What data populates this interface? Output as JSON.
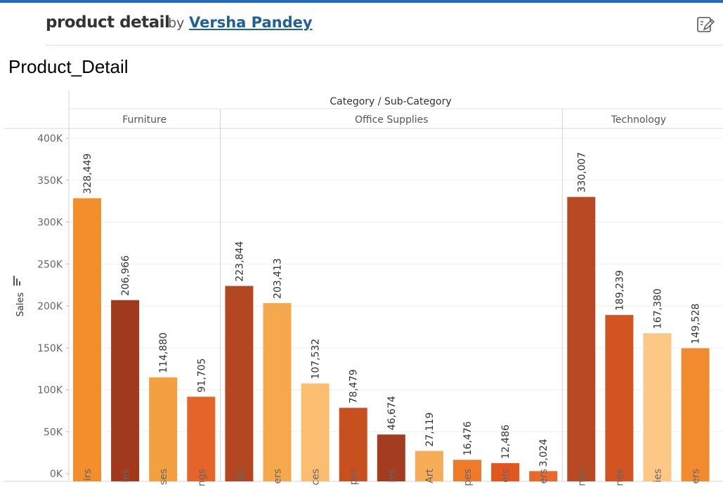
{
  "header": {
    "title": "product detail",
    "by": "by",
    "author": "Versha Pandey",
    "edit_icon": "edit-pencil-icon"
  },
  "sheet": {
    "title": "Product_Detail"
  },
  "chart_data": {
    "type": "bar",
    "column_header": "Category / Sub-Category",
    "ylabel": "Sales",
    "ylim": [
      0,
      400000
    ],
    "yticks": [
      0,
      50000,
      100000,
      150000,
      200000,
      250000,
      300000,
      350000,
      400000
    ],
    "ytick_labels": [
      "0K",
      "50K",
      "100K",
      "150K",
      "200K",
      "250K",
      "300K",
      "350K",
      "400K"
    ],
    "grid": true,
    "groups": [
      {
        "name": "Furniture",
        "bars": [
          {
            "label": "irs",
            "value": 328449,
            "value_label": "328,449",
            "color": "#f28e2b"
          },
          {
            "label": "les",
            "value": 206966,
            "value_label": "206,966",
            "color": "#a1391c"
          },
          {
            "label": "ses",
            "value": 114880,
            "value_label": "114,880",
            "color": "#f3a040"
          },
          {
            "label": "ngs",
            "value": 91705,
            "value_label": "91,705",
            "color": "#e5642a"
          }
        ]
      },
      {
        "name": "Office Supplies",
        "bars": [
          {
            "label": "ge",
            "value": 223844,
            "value_label": "223,844",
            "color": "#b34722"
          },
          {
            "label": "ers",
            "value": 203413,
            "value_label": "203,413",
            "color": "#f5a94c"
          },
          {
            "label": "ces",
            "value": 107532,
            "value_label": "107,532",
            "color": "#fbbd70"
          },
          {
            "label": "per",
            "value": 78479,
            "value_label": "78,479",
            "color": "#c8501f"
          },
          {
            "label": "ies",
            "value": 46674,
            "value_label": "46,674",
            "color": "#a43c1f"
          },
          {
            "label": "Art",
            "value": 27119,
            "value_label": "27,119",
            "color": "#f7ad57"
          },
          {
            "label": "pes",
            "value": 16476,
            "value_label": "16,476",
            "color": "#ee7a2a"
          },
          {
            "label": "els",
            "value": 12486,
            "value_label": "12,486",
            "color": "#e2571f"
          },
          {
            "label": "ers",
            "value": 3024,
            "value_label": "3,024",
            "color": "#e9692a"
          }
        ]
      },
      {
        "name": "Technology",
        "bars": [
          {
            "label": "nes",
            "value": 330007,
            "value_label": "330,007",
            "color": "#b84a23"
          },
          {
            "label": "nes",
            "value": 189239,
            "value_label": "189,239",
            "color": "#d25421"
          },
          {
            "label": "ies",
            "value": 167380,
            "value_label": "167,380",
            "color": "#fdc786"
          },
          {
            "label": "ers",
            "value": 149528,
            "value_label": "149,528",
            "color": "#f28a2e"
          }
        ]
      }
    ]
  }
}
